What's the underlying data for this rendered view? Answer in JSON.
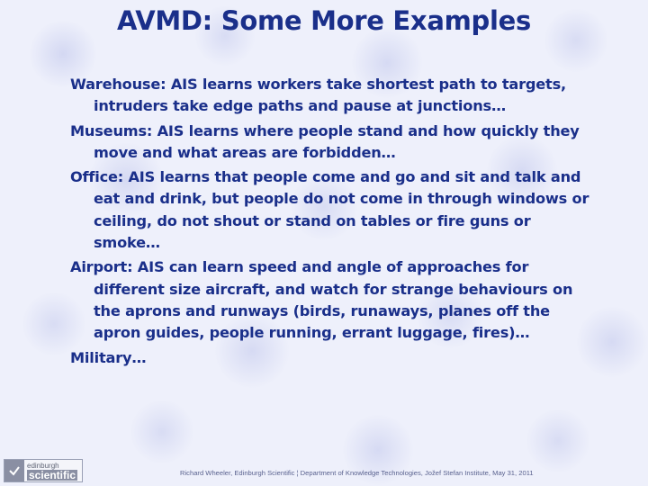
{
  "slide": {
    "title": "AVMD: Some More Examples",
    "bullets": [
      {
        "text": "Warehouse: AIS learns workers take shortest path to targets, intruders take edge paths and pause at junctions…"
      },
      {
        "text": "Museums: AIS learns where people stand and how quickly they move and what areas are forbidden…"
      },
      {
        "text": "Office: AIS learns that people come and go and sit and talk and eat and drink, but people do not come in through windows or ceiling, do not shout or stand on tables or fire guns or smoke…"
      },
      {
        "text": "Airport: AIS can learn speed and angle of approaches for different size aircraft, and watch for strange behaviours on the aprons and runways (birds, runaways, planes off the apron guides, people running, errant luggage, fires)…"
      },
      {
        "text": "Military…"
      }
    ],
    "footer": "Richard Wheeler, Edinburgh Scientific ¦ Department of Knowledge Technologies, Jožef Stefan Institute, May 31, 2011",
    "logo": {
      "top": "edinburgh",
      "bottom": "scientific"
    }
  },
  "colors": {
    "title": "#1a2f8a",
    "text": "#1a2f8a",
    "background": "#eef0fb"
  }
}
